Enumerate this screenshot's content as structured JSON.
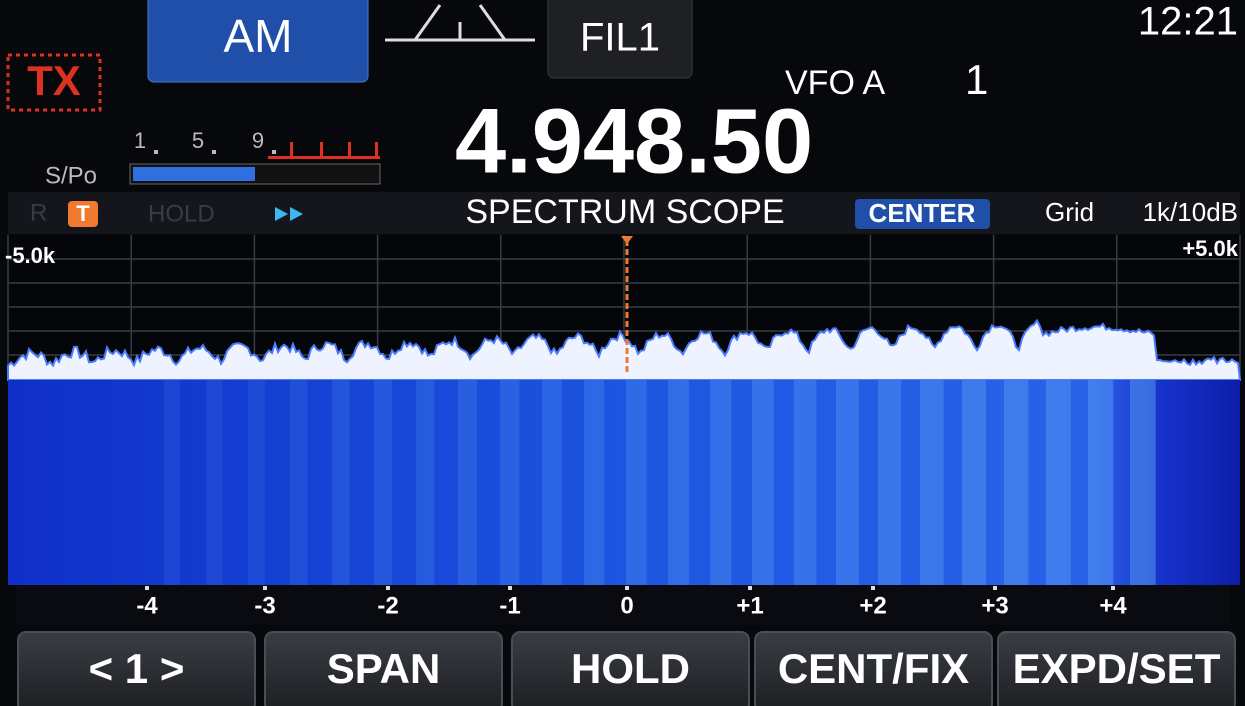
{
  "header": {
    "mode": "AM",
    "filter": "FIL1",
    "clock": "12:21",
    "tx": "TX",
    "vfo": "VFO A",
    "memory": "1"
  },
  "meter": {
    "label": "S/Po",
    "scale": [
      "1",
      "5",
      "9"
    ]
  },
  "frequency": "4.948.50",
  "scope": {
    "indicators": [
      "R",
      "T",
      "HOLD"
    ],
    "title": "SPECTRUM SCOPE",
    "mode": "CENTER",
    "grid": "Grid",
    "scale": "1k/10dB",
    "left_edge": "-5.0k",
    "right_edge": "+5.0k",
    "axis_labels": [
      "-4",
      "-3",
      "-2",
      "-1",
      "0",
      "+1",
      "+2",
      "+3",
      "+4"
    ]
  },
  "buttons": [
    "< 1 >",
    "SPAN",
    "HOLD",
    "CENT/FIX",
    "EXPD/SET"
  ]
}
